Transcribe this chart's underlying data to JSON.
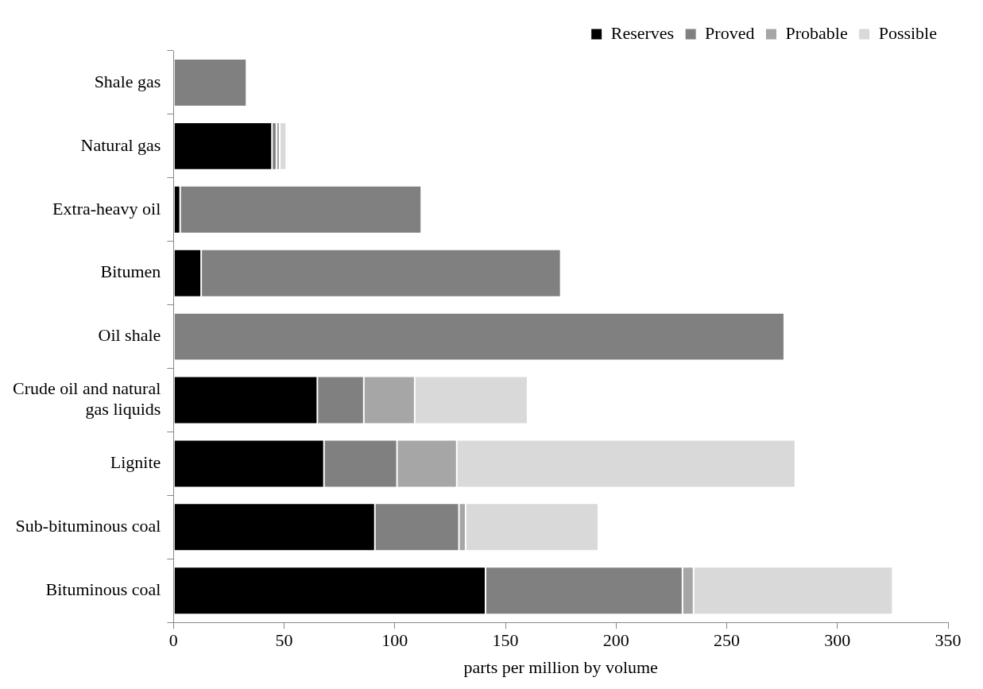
{
  "chart_data": {
    "type": "bar",
    "orientation": "horizontal",
    "stacked": true,
    "xlabel": "parts per million by volume",
    "categories": [
      "Shale gas",
      "Natural gas",
      "Extra-heavy oil",
      "Bitumen",
      "Oil shale",
      "Crude oil and natural gas liquids",
      "Lignite",
      "Sub-bituminous coal",
      "Bituminous coal"
    ],
    "series": [
      {
        "name": "Reserves",
        "color": "#000000",
        "values": [
          0,
          44.5,
          3,
          12.5,
          0,
          65,
          68,
          91,
          141
        ]
      },
      {
        "name": "Proved",
        "color": "#808080",
        "values": [
          33,
          2,
          109,
          162.5,
          276,
          21,
          33,
          38,
          89
        ]
      },
      {
        "name": "Probable",
        "color": "#a6a6a6",
        "values": [
          0,
          1.5,
          0,
          0,
          0,
          23,
          27,
          3,
          5
        ]
      },
      {
        "name": "Possible",
        "color": "#d9d9d9",
        "values": [
          0,
          3,
          0,
          0,
          0,
          51,
          153,
          60,
          90
        ]
      }
    ],
    "xlim": [
      0,
      350
    ],
    "xticks": [
      0,
      50,
      100,
      150,
      200,
      250,
      300,
      350
    ],
    "grid": false,
    "legend": "top right"
  }
}
